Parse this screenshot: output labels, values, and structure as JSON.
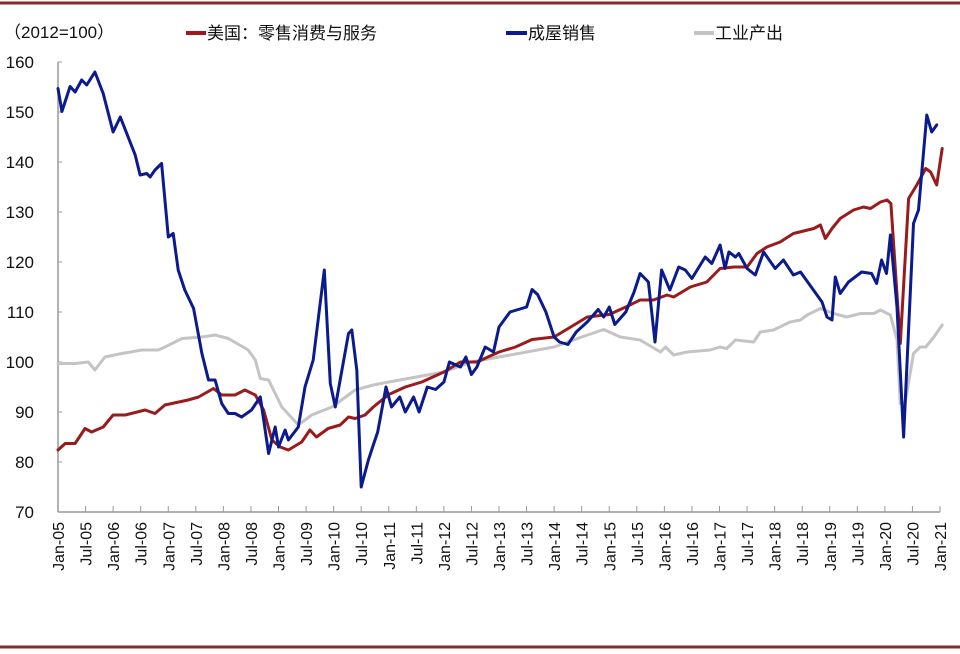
{
  "chart_data": {
    "type": "line",
    "title": "",
    "unit_label": "（2012=100）",
    "xlabel": "",
    "ylabel": "",
    "ylim": [
      70,
      160
    ],
    "xlim": [
      2005.0,
      2021.0
    ],
    "yticks": [
      70,
      80,
      90,
      100,
      110,
      120,
      130,
      140,
      150,
      160
    ],
    "xtick_labels": [
      "Jan-05",
      "Jul-05",
      "Jan-06",
      "Jul-06",
      "Jan-07",
      "Jul-07",
      "Jan-08",
      "Jul-08",
      "Jan-09",
      "Jul-09",
      "Jan-10",
      "Jul-10",
      "Jan-11",
      "Jul-11",
      "Jan-12",
      "Jul-12",
      "Jan-13",
      "Jul-13",
      "Jan-14",
      "Jul-14",
      "Jan-15",
      "Jul-15",
      "Jan-16",
      "Jul-16",
      "Jan-17",
      "Jul-17",
      "Jan-18",
      "Jul-18",
      "Jan-19",
      "Jul-19",
      "Jan-20",
      "Jul-20",
      "Jan-21"
    ],
    "grid": false,
    "legend_position": "top",
    "series": [
      {
        "name": "美国：零售消费与服务",
        "color": "#991b1b",
        "points": [
          [
            2005.0,
            82.4
          ],
          [
            2005.13,
            83.7
          ],
          [
            2005.31,
            83.7
          ],
          [
            2005.49,
            86.7
          ],
          [
            2005.61,
            86
          ],
          [
            2005.82,
            87
          ],
          [
            2006.0,
            89.4
          ],
          [
            2006.22,
            89.4
          ],
          [
            2006.58,
            90.4
          ],
          [
            2006.76,
            89.7
          ],
          [
            2006.94,
            91.4
          ],
          [
            2007.36,
            92.4
          ],
          [
            2007.55,
            93
          ],
          [
            2007.82,
            94.7
          ],
          [
            2007.97,
            93.4
          ],
          [
            2008.21,
            93.4
          ],
          [
            2008.39,
            94.4
          ],
          [
            2008.58,
            93.4
          ],
          [
            2008.73,
            90.4
          ],
          [
            2008.88,
            84.4
          ],
          [
            2009.03,
            83
          ],
          [
            2009.18,
            82.4
          ],
          [
            2009.42,
            84
          ],
          [
            2009.57,
            86.4
          ],
          [
            2009.69,
            85
          ],
          [
            2009.9,
            86.7
          ],
          [
            2010.12,
            87.4
          ],
          [
            2010.27,
            89
          ],
          [
            2010.39,
            88.7
          ],
          [
            2010.57,
            89.4
          ],
          [
            2010.72,
            91
          ],
          [
            2011.0,
            93.5
          ],
          [
            2011.3,
            95
          ],
          [
            2011.6,
            96
          ],
          [
            2012.0,
            98
          ],
          [
            2012.3,
            100
          ],
          [
            2012.6,
            100
          ],
          [
            2013.0,
            102
          ],
          [
            2013.3,
            103
          ],
          [
            2013.6,
            104.5
          ],
          [
            2014.0,
            105
          ],
          [
            2014.3,
            107
          ],
          [
            2014.6,
            109
          ],
          [
            2015.0,
            109.5
          ],
          [
            2015.3,
            111
          ],
          [
            2015.56,
            112.4
          ],
          [
            2015.8,
            112.4
          ],
          [
            2016.05,
            113.4
          ],
          [
            2016.17,
            113
          ],
          [
            2016.47,
            115
          ],
          [
            2016.77,
            116
          ],
          [
            2017.01,
            118.7
          ],
          [
            2017.26,
            119
          ],
          [
            2017.5,
            119
          ],
          [
            2017.68,
            121.7
          ],
          [
            2017.86,
            123
          ],
          [
            2018.1,
            124
          ],
          [
            2018.34,
            125.7
          ],
          [
            2018.71,
            126.7
          ],
          [
            2018.83,
            127.4
          ],
          [
            2018.92,
            124.7
          ],
          [
            2019.04,
            126.7
          ],
          [
            2019.19,
            128.7
          ],
          [
            2019.43,
            130.4
          ],
          [
            2019.61,
            131
          ],
          [
            2019.74,
            130.7
          ],
          [
            2019.92,
            132
          ],
          [
            2020.04,
            132.4
          ],
          [
            2020.11,
            131.7
          ],
          [
            2020.28,
            103.7
          ],
          [
            2020.43,
            132.7
          ],
          [
            2020.58,
            135.4
          ],
          [
            2020.74,
            138.7
          ],
          [
            2020.83,
            138
          ],
          [
            2020.94,
            135.4
          ],
          [
            2021.04,
            142.7
          ]
        ]
      },
      {
        "name": "成屋销售",
        "color": "#0b1a8c",
        "points": [
          [
            2005.0,
            154.7
          ],
          [
            2005.07,
            150.1
          ],
          [
            2005.22,
            155.1
          ],
          [
            2005.31,
            154
          ],
          [
            2005.43,
            156.4
          ],
          [
            2005.52,
            155.4
          ],
          [
            2005.67,
            158
          ],
          [
            2005.82,
            153.7
          ],
          [
            2006.0,
            146
          ],
          [
            2006.13,
            149
          ],
          [
            2006.4,
            141.4
          ],
          [
            2006.49,
            137.4
          ],
          [
            2006.61,
            137.7
          ],
          [
            2006.67,
            137
          ],
          [
            2006.76,
            138.4
          ],
          [
            2006.88,
            139.7
          ],
          [
            2007.0,
            125
          ],
          [
            2007.09,
            125.7
          ],
          [
            2007.18,
            118.4
          ],
          [
            2007.3,
            114.4
          ],
          [
            2007.46,
            110.7
          ],
          [
            2007.61,
            101.7
          ],
          [
            2007.73,
            96.4
          ],
          [
            2007.85,
            96.4
          ],
          [
            2007.97,
            91.7
          ],
          [
            2008.09,
            89.7
          ],
          [
            2008.21,
            89.7
          ],
          [
            2008.33,
            89
          ],
          [
            2008.51,
            90.4
          ],
          [
            2008.67,
            93
          ],
          [
            2008.82,
            81.7
          ],
          [
            2008.94,
            87
          ],
          [
            2009.0,
            83
          ],
          [
            2009.12,
            86.4
          ],
          [
            2009.18,
            84.4
          ],
          [
            2009.36,
            87
          ],
          [
            2009.48,
            95
          ],
          [
            2009.63,
            100.4
          ],
          [
            2009.83,
            118.4
          ],
          [
            2009.94,
            95.7
          ],
          [
            2010.03,
            91
          ],
          [
            2010.27,
            105.7
          ],
          [
            2010.33,
            106.4
          ],
          [
            2010.42,
            98.4
          ],
          [
            2010.5,
            75
          ],
          [
            2010.63,
            80.4
          ],
          [
            2010.72,
            83.4
          ],
          [
            2010.8,
            86
          ],
          [
            2010.95,
            95
          ],
          [
            2011.05,
            91
          ],
          [
            2011.2,
            93
          ],
          [
            2011.3,
            90
          ],
          [
            2011.45,
            93
          ],
          [
            2011.55,
            90
          ],
          [
            2011.7,
            95
          ],
          [
            2011.85,
            94.5
          ],
          [
            2012.0,
            96
          ],
          [
            2012.1,
            100
          ],
          [
            2012.3,
            99
          ],
          [
            2012.4,
            101
          ],
          [
            2012.5,
            97.5
          ],
          [
            2012.6,
            99
          ],
          [
            2012.75,
            103
          ],
          [
            2012.9,
            102
          ],
          [
            2013.0,
            107
          ],
          [
            2013.2,
            110
          ],
          [
            2013.35,
            110.5
          ],
          [
            2013.5,
            111
          ],
          [
            2013.6,
            114.5
          ],
          [
            2013.7,
            113.5
          ],
          [
            2013.85,
            110
          ],
          [
            2014.0,
            105
          ],
          [
            2014.1,
            104
          ],
          [
            2014.25,
            103.5
          ],
          [
            2014.4,
            106
          ],
          [
            2014.6,
            108
          ],
          [
            2014.8,
            110.5
          ],
          [
            2014.9,
            109
          ],
          [
            2015.0,
            111
          ],
          [
            2015.1,
            107.5
          ],
          [
            2015.3,
            110
          ],
          [
            2015.45,
            114
          ],
          [
            2015.56,
            117.7
          ],
          [
            2015.71,
            116
          ],
          [
            2015.83,
            104
          ],
          [
            2015.95,
            118.4
          ],
          [
            2016.1,
            114.4
          ],
          [
            2016.26,
            119
          ],
          [
            2016.38,
            118.4
          ],
          [
            2016.5,
            116.7
          ],
          [
            2016.74,
            121
          ],
          [
            2016.86,
            119.7
          ],
          [
            2017.01,
            123.4
          ],
          [
            2017.1,
            118.7
          ],
          [
            2017.17,
            122
          ],
          [
            2017.29,
            121
          ],
          [
            2017.35,
            121.7
          ],
          [
            2017.5,
            118.7
          ],
          [
            2017.65,
            117.4
          ],
          [
            2017.8,
            122
          ],
          [
            2018.01,
            118.7
          ],
          [
            2018.16,
            120.4
          ],
          [
            2018.34,
            117.4
          ],
          [
            2018.47,
            118
          ],
          [
            2018.86,
            112
          ],
          [
            2018.95,
            109
          ],
          [
            2019.04,
            108.4
          ],
          [
            2019.1,
            117
          ],
          [
            2019.19,
            113.7
          ],
          [
            2019.34,
            116
          ],
          [
            2019.58,
            118
          ],
          [
            2019.76,
            117.7
          ],
          [
            2019.85,
            115.7
          ],
          [
            2019.94,
            120.4
          ],
          [
            2020.03,
            117.7
          ],
          [
            2020.1,
            125.4
          ],
          [
            2020.22,
            111
          ],
          [
            2020.34,
            85
          ],
          [
            2020.52,
            127.7
          ],
          [
            2020.61,
            130.4
          ],
          [
            2020.76,
            149.4
          ],
          [
            2020.85,
            146
          ],
          [
            2020.94,
            147.4
          ]
        ]
      },
      {
        "name": "工业产出",
        "color": "#c4c4c4",
        "points": [
          [
            2005.0,
            99.7
          ],
          [
            2005.31,
            99.7
          ],
          [
            2005.55,
            100
          ],
          [
            2005.67,
            98.4
          ],
          [
            2005.85,
            101
          ],
          [
            2006.16,
            101.7
          ],
          [
            2006.52,
            102.4
          ],
          [
            2006.82,
            102.4
          ],
          [
            2006.94,
            103
          ],
          [
            2007.25,
            104.7
          ],
          [
            2007.61,
            105
          ],
          [
            2007.85,
            105.4
          ],
          [
            2008.09,
            104.7
          ],
          [
            2008.45,
            102.4
          ],
          [
            2008.58,
            100.4
          ],
          [
            2008.67,
            96.7
          ],
          [
            2008.82,
            96.4
          ],
          [
            2009.06,
            91
          ],
          [
            2009.36,
            87.4
          ],
          [
            2009.6,
            89.4
          ],
          [
            2009.97,
            91
          ],
          [
            2010.39,
            94.4
          ],
          [
            2010.72,
            95.4
          ],
          [
            2011.0,
            96
          ],
          [
            2011.5,
            97
          ],
          [
            2012.0,
            98
          ],
          [
            2012.5,
            100
          ],
          [
            2013.0,
            101
          ],
          [
            2013.5,
            102
          ],
          [
            2014.0,
            103
          ],
          [
            2014.5,
            105
          ],
          [
            2014.9,
            106.5
          ],
          [
            2015.2,
            105
          ],
          [
            2015.56,
            104.4
          ],
          [
            2015.93,
            102
          ],
          [
            2016.02,
            103
          ],
          [
            2016.17,
            101.4
          ],
          [
            2016.41,
            102
          ],
          [
            2016.83,
            102.4
          ],
          [
            2017.01,
            103
          ],
          [
            2017.13,
            102.7
          ],
          [
            2017.29,
            104.4
          ],
          [
            2017.62,
            104
          ],
          [
            2017.74,
            106
          ],
          [
            2017.98,
            106.4
          ],
          [
            2018.28,
            108
          ],
          [
            2018.47,
            108.4
          ],
          [
            2018.59,
            109.4
          ],
          [
            2018.83,
            110.7
          ],
          [
            2019.07,
            109.7
          ],
          [
            2019.31,
            109
          ],
          [
            2019.56,
            109.7
          ],
          [
            2019.8,
            109.7
          ],
          [
            2019.92,
            110.4
          ],
          [
            2020.1,
            109.4
          ],
          [
            2020.22,
            104.4
          ],
          [
            2020.28,
            91.7
          ],
          [
            2020.37,
            92
          ],
          [
            2020.52,
            101.7
          ],
          [
            2020.64,
            103
          ],
          [
            2020.74,
            103
          ],
          [
            2020.89,
            105
          ],
          [
            2021.04,
            107.4
          ]
        ]
      }
    ]
  }
}
